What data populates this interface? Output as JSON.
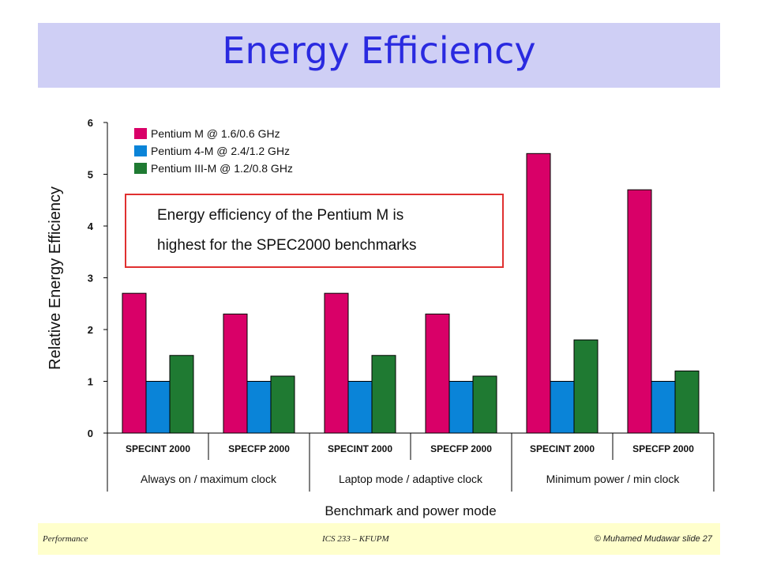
{
  "slide": {
    "title": "Energy Efficiency",
    "footer_left": "Performance",
    "footer_center": "ICS 233 – KFUPM",
    "footer_right": "© Muhamed Mudawar  slide 27"
  },
  "colors": {
    "title_band": "#cfcff5",
    "title_text": "#2a2ae0",
    "footer_band": "#ffffcc",
    "callout_border": "#e03030"
  },
  "callout": {
    "line1": "Energy efficiency of the Pentium M is",
    "line2": "highest for the SPEC2000 benchmarks"
  },
  "chart_data": {
    "type": "bar",
    "title": "",
    "ylabel": "Relative Energy Efficiency",
    "xlabel": "Benchmark and power mode",
    "ylim": [
      0,
      6
    ],
    "yticks": [
      0,
      1,
      2,
      3,
      4,
      5,
      6
    ],
    "grid": false,
    "legend_position": "top-left",
    "categories": [
      "SPECINT 2000",
      "SPECFP 2000",
      "SPECINT 2000",
      "SPECFP 2000",
      "SPECINT 2000",
      "SPECFP 2000"
    ],
    "groups": [
      "Always on / maximum clock",
      "Laptop mode / adaptive clock",
      "Minimum power / min clock"
    ],
    "series": [
      {
        "name": "Pentium M @ 1.6/0.6 GHz",
        "color": "#d90068",
        "values": [
          2.7,
          2.3,
          2.7,
          2.3,
          5.4,
          4.7
        ]
      },
      {
        "name": "Pentium 4-M @ 2.4/1.2 GHz",
        "color": "#0a84d8",
        "values": [
          1.0,
          1.0,
          1.0,
          1.0,
          1.0,
          1.0
        ]
      },
      {
        "name": "Pentium III-M @ 1.2/0.8 GHz",
        "color": "#1f7a32",
        "values": [
          1.5,
          1.1,
          1.5,
          1.1,
          1.8,
          1.2
        ]
      }
    ]
  }
}
